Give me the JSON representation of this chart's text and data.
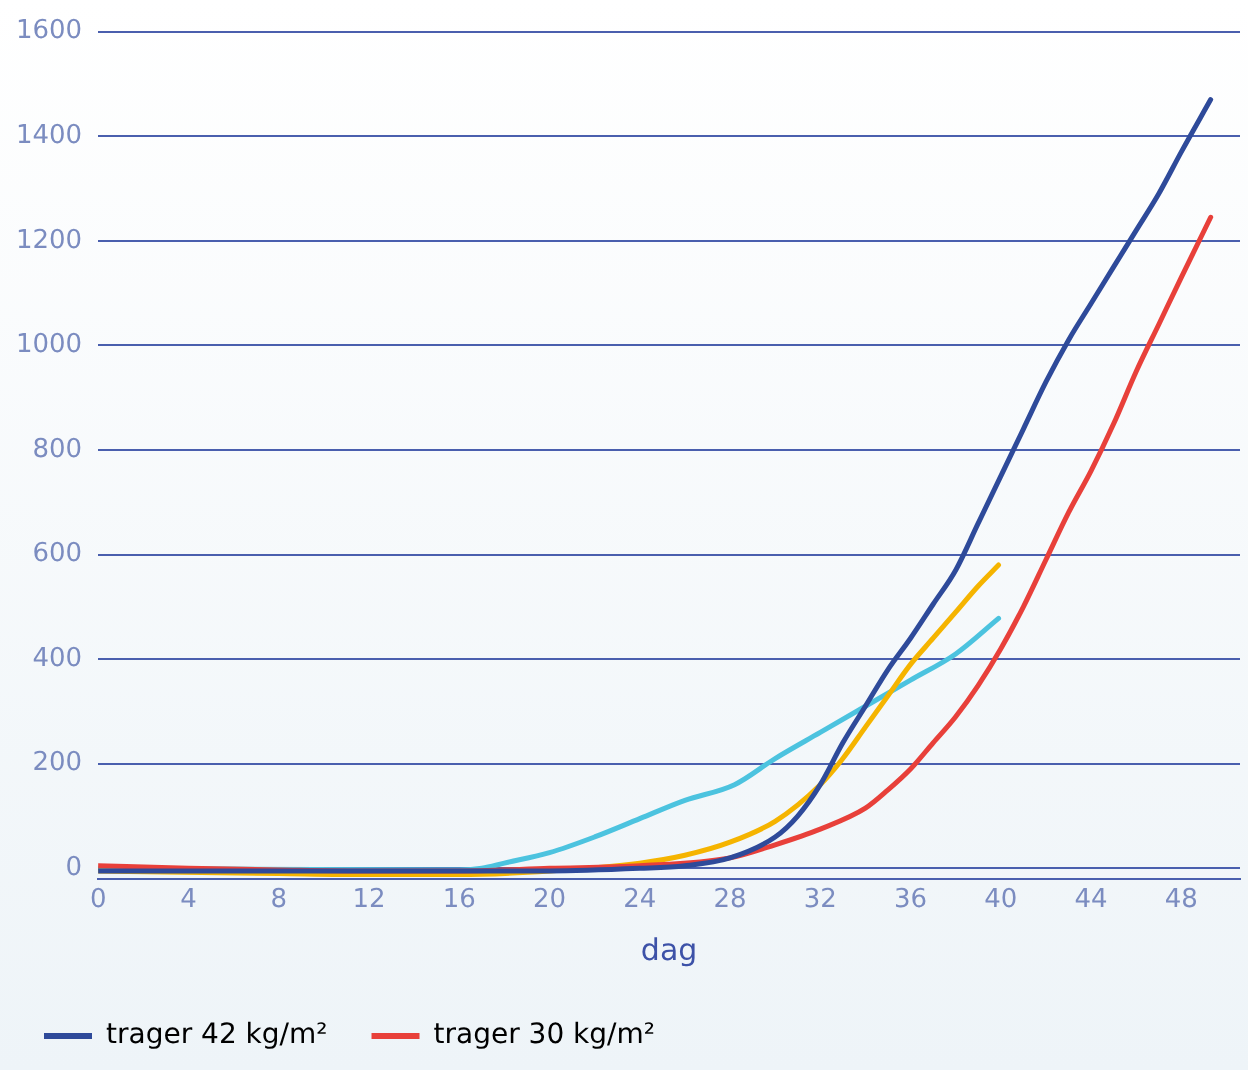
{
  "chart_data": {
    "type": "line",
    "xlabel": "dag",
    "xlim": [
      0,
      50.6
    ],
    "xticks": [
      0,
      4,
      8,
      12,
      16,
      20,
      24,
      28,
      32,
      36,
      40,
      44,
      48
    ],
    "ylim": [
      -20,
      1600
    ],
    "yticks": [
      0,
      200,
      400,
      600,
      800,
      1000,
      1200,
      1400,
      1600
    ],
    "grid": "y",
    "legend": "bottom left",
    "marker": "none",
    "line_style": "solid",
    "series": [
      {
        "name": "trager 42 kg/m²",
        "color": "#2e4a9a",
        "x": [
          0,
          4,
          8,
          12,
          16,
          20,
          24,
          26,
          28,
          30,
          31,
          32,
          33,
          34,
          35,
          36,
          37,
          38,
          39,
          40,
          41,
          42,
          43,
          44,
          45,
          46,
          47,
          48,
          49.3
        ],
        "values": [
          -5,
          -5,
          -5,
          -5,
          -5,
          -5,
          0,
          5,
          20,
          60,
          100,
          160,
          240,
          310,
          380,
          440,
          505,
          570,
          660,
          750,
          840,
          930,
          1010,
          1080,
          1150,
          1220,
          1290,
          1370,
          1470
        ]
      },
      {
        "name": "trager 30 kg/m²",
        "color": "#e8403a",
        "x": [
          0,
          4,
          8,
          12,
          16,
          20,
          24,
          28,
          30,
          32,
          34,
          35,
          36,
          37,
          38,
          39,
          40,
          41,
          42,
          43,
          44,
          45,
          46,
          47,
          48,
          49.3
        ],
        "values": [
          5,
          0,
          -3,
          -5,
          -5,
          0,
          5,
          20,
          45,
          75,
          115,
          150,
          190,
          240,
          290,
          350,
          420,
          500,
          590,
          680,
          760,
          850,
          950,
          1040,
          1130,
          1245
        ]
      },
      {
        "color": "#f5b400",
        "x": [
          0,
          8,
          12,
          16,
          20,
          24,
          26,
          28,
          30,
          32,
          33,
          34,
          35,
          36,
          37,
          38,
          39,
          39.9
        ],
        "values": [
          -5,
          -10,
          -12,
          -12,
          -5,
          10,
          25,
          50,
          90,
          160,
          210,
          270,
          330,
          390,
          440,
          490,
          540,
          580
        ]
      },
      {
        "color": "#4cc3df",
        "x": [
          0,
          16,
          17,
          18,
          20,
          22,
          24,
          26,
          28.2,
          30,
          32,
          34,
          36,
          38,
          39.9
        ],
        "values": [
          0,
          -3,
          0,
          10,
          30,
          60,
          95,
          130,
          160,
          210,
          260,
          310,
          360,
          410,
          478
        ]
      }
    ]
  }
}
